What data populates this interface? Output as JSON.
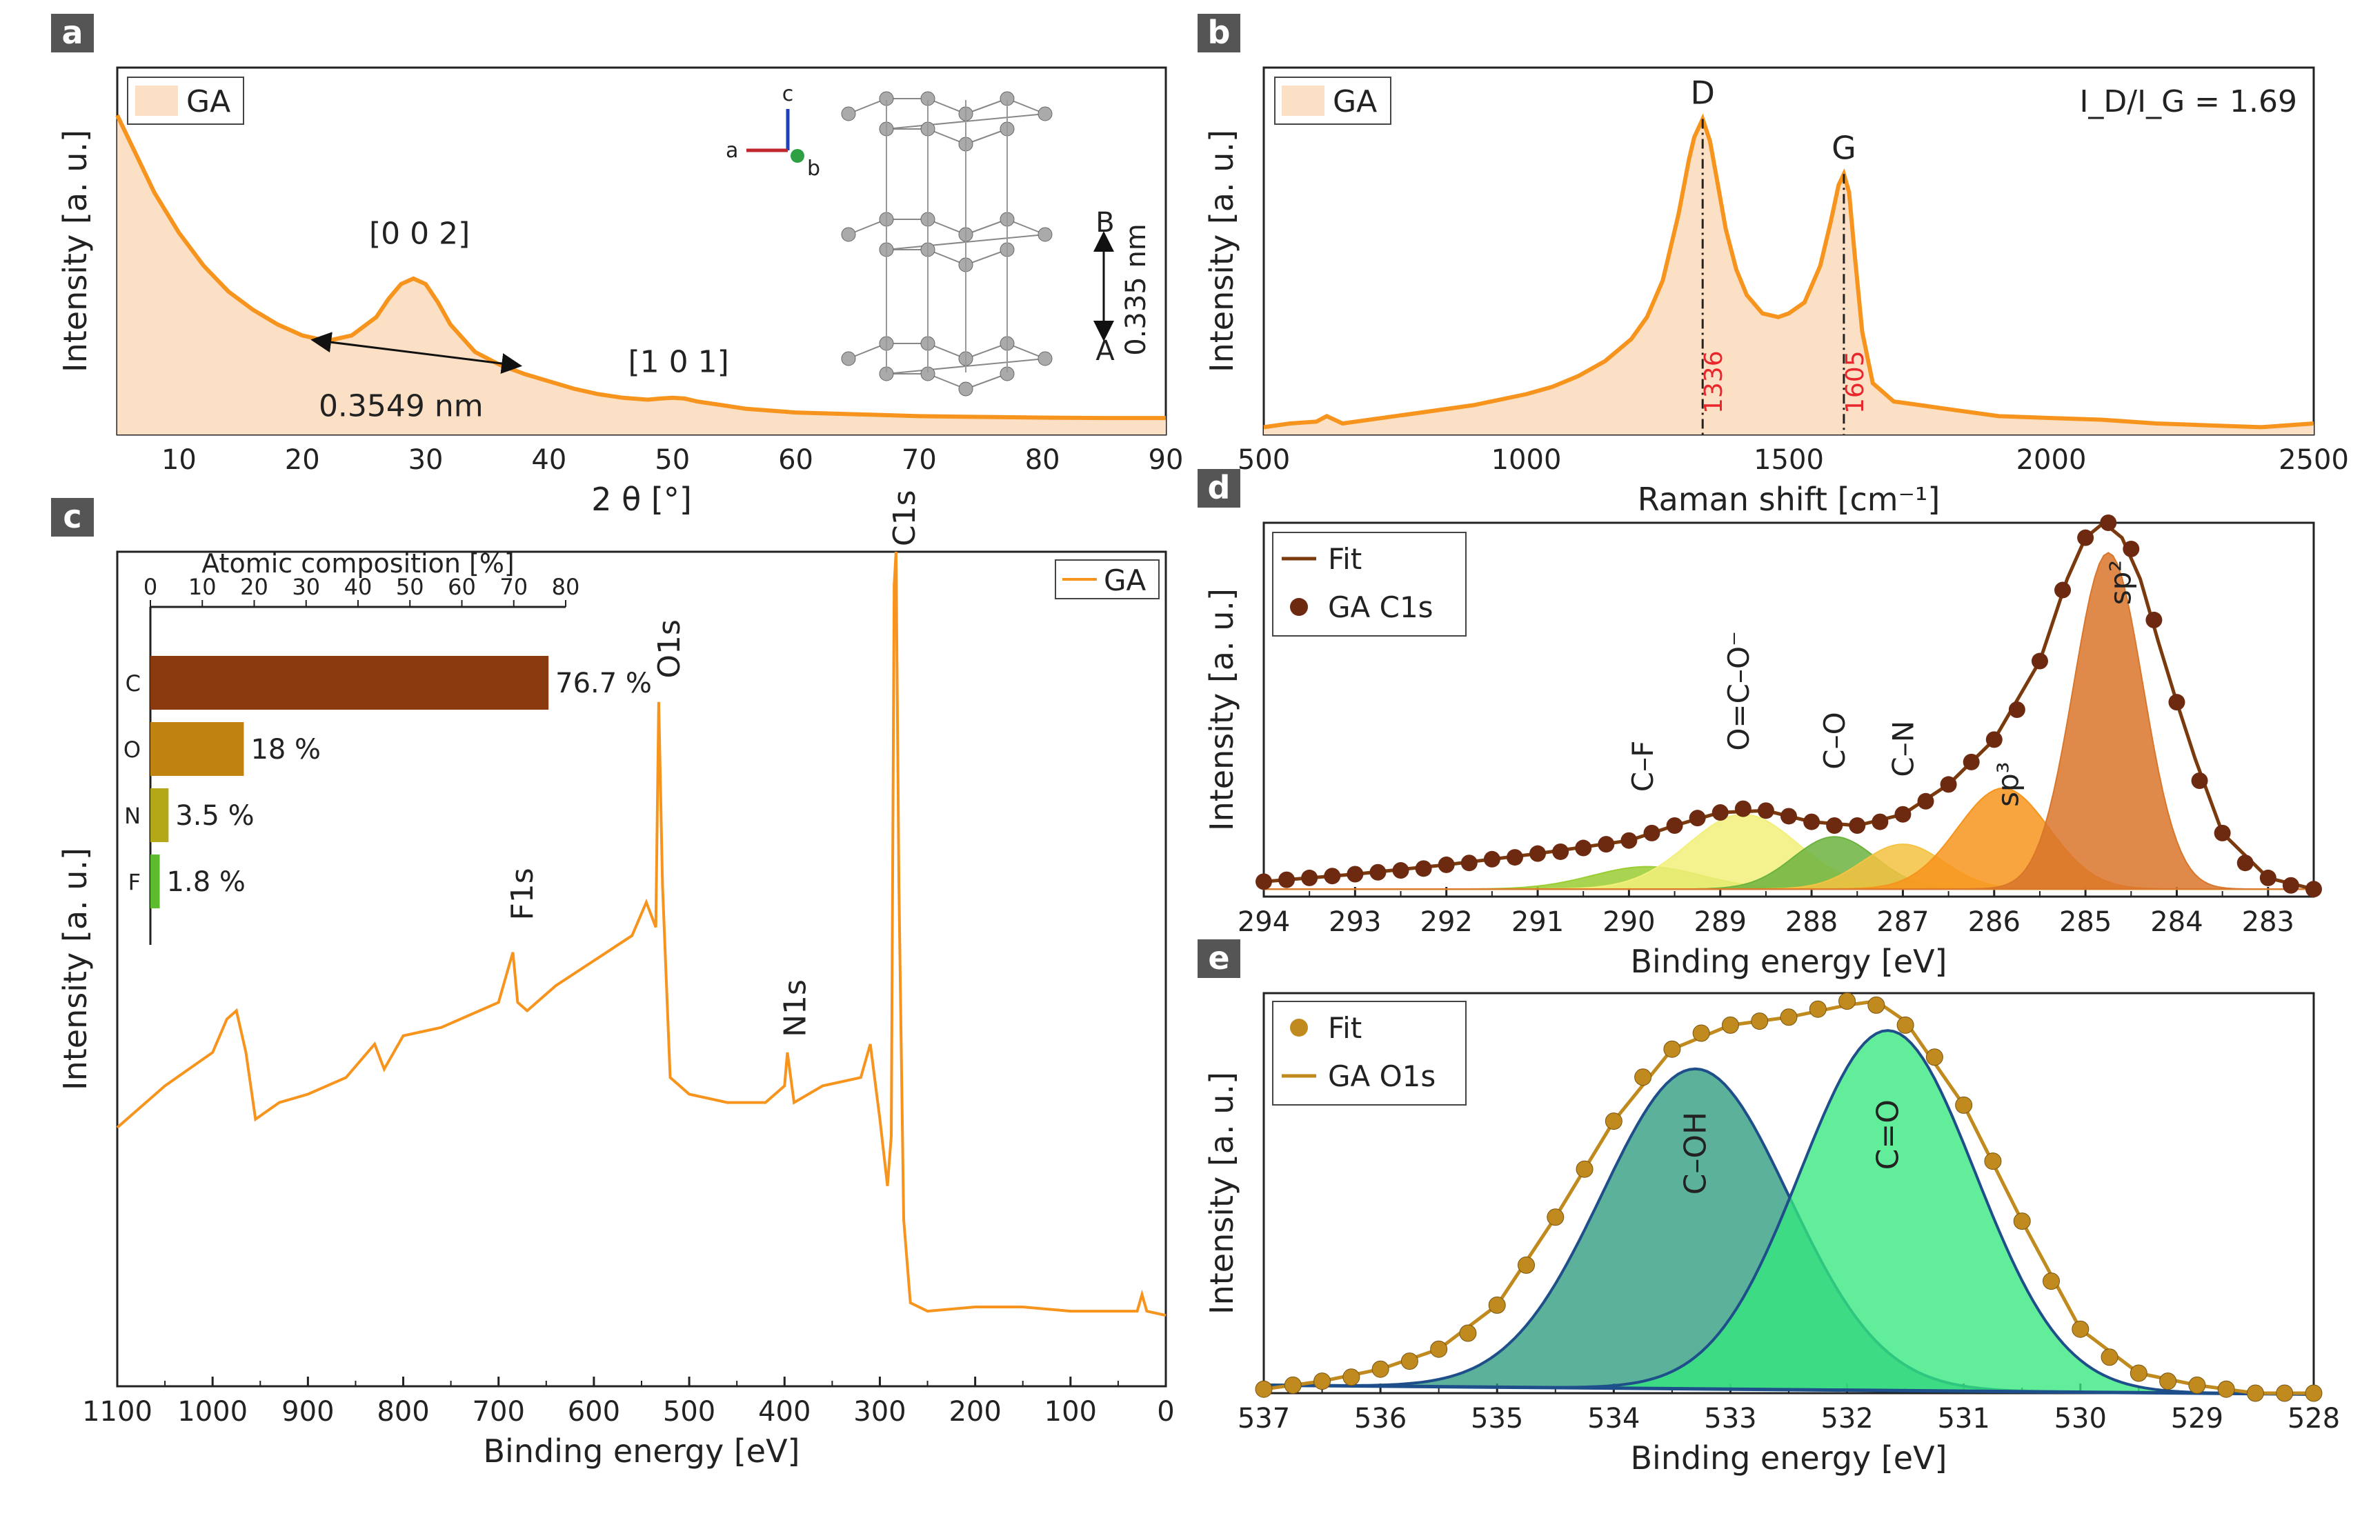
{
  "colors": {
    "orange": "#f7941d",
    "orange_fill": "#fbe0c6",
    "brown": "#7a3a0d",
    "dot_brown": "#6e2a10",
    "gold": "#c08a1e",
    "red_label": "#e8262b",
    "teal": "#2e9b7f",
    "green": "#35e87d",
    "navy": "#1f4f8a",
    "bar_C": "#8b3a0f",
    "bar_O": "#c0830f",
    "bar_N": "#b5a818",
    "bar_F": "#5dbb2e",
    "panel_label_bg": "#555555",
    "xps_sp2": "#d9762b",
    "xps_sp3": "#f7941d",
    "xps_co": "#6db33f",
    "xps_cn": "#f5c242",
    "xps_ocoo": "#f2f07a",
    "xps_cf": "#9acd32"
  },
  "chart_data": [
    {
      "panel": "a",
      "type": "line",
      "title": "",
      "xlabel": "2 θ [°]",
      "ylabel": "Intensity [a. u.]",
      "xlim": [
        5,
        90
      ],
      "ylim": [
        0,
        1
      ],
      "xticks": [
        10,
        20,
        30,
        40,
        50,
        60,
        70,
        80,
        90
      ],
      "legend": "GA",
      "series": [
        {
          "name": "GA",
          "x": [
            5,
            6,
            8,
            10,
            12,
            14,
            16,
            18,
            20,
            22,
            24,
            26,
            27,
            28,
            29,
            30,
            31,
            32,
            34,
            36,
            38,
            40,
            42,
            44,
            46,
            48,
            49,
            50,
            51,
            52,
            54,
            56,
            60,
            65,
            70,
            75,
            80,
            85,
            90
          ],
          "y": [
            0.87,
            0.8,
            0.66,
            0.55,
            0.46,
            0.39,
            0.34,
            0.3,
            0.27,
            0.255,
            0.27,
            0.32,
            0.37,
            0.41,
            0.425,
            0.41,
            0.36,
            0.3,
            0.225,
            0.19,
            0.165,
            0.145,
            0.125,
            0.11,
            0.1,
            0.095,
            0.098,
            0.1,
            0.098,
            0.09,
            0.08,
            0.07,
            0.06,
            0.055,
            0.05,
            0.048,
            0.046,
            0.045,
            0.045
          ]
        }
      ],
      "annotations": {
        "peak_002": "[0 0 2]",
        "peak_101": "[1 0 1]",
        "fwhm": "0.3549 nm",
        "interlayer": "0.335 nm",
        "layer_A": "A",
        "layer_B": "B",
        "axis_a": "a",
        "axis_b": "b",
        "axis_c": "c"
      }
    },
    {
      "panel": "b",
      "type": "line",
      "xlabel": "Raman shift [cm⁻¹]",
      "ylabel": "Intensity [a. u.]",
      "xlim": [
        500,
        2500
      ],
      "ylim": [
        0,
        1
      ],
      "xticks": [
        500,
        1000,
        1500,
        2000,
        2500
      ],
      "legend": "GA",
      "ratio_text": "I_D/I_G = 1.69",
      "series": [
        {
          "name": "GA",
          "x": [
            500,
            550,
            600,
            620,
            650,
            700,
            800,
            900,
            1000,
            1050,
            1100,
            1150,
            1200,
            1230,
            1260,
            1290,
            1310,
            1320,
            1336,
            1350,
            1365,
            1380,
            1400,
            1420,
            1450,
            1480,
            1500,
            1530,
            1560,
            1580,
            1595,
            1605,
            1615,
            1625,
            1640,
            1660,
            1700,
            1750,
            1800,
            1900,
            2000,
            2100,
            2200,
            2300,
            2400,
            2500
          ],
          "y": [
            0.02,
            0.03,
            0.035,
            0.05,
            0.03,
            0.04,
            0.06,
            0.08,
            0.11,
            0.13,
            0.16,
            0.2,
            0.26,
            0.32,
            0.42,
            0.6,
            0.75,
            0.81,
            0.86,
            0.8,
            0.68,
            0.56,
            0.45,
            0.38,
            0.33,
            0.32,
            0.33,
            0.36,
            0.46,
            0.58,
            0.68,
            0.71,
            0.66,
            0.5,
            0.28,
            0.14,
            0.09,
            0.08,
            0.07,
            0.05,
            0.045,
            0.04,
            0.03,
            0.025,
            0.02,
            0.03
          ]
        }
      ],
      "peaks": [
        {
          "name": "D",
          "position": 1336
        },
        {
          "name": "G",
          "position": 1605
        }
      ]
    },
    {
      "panel": "c",
      "type": "line",
      "xlabel": "Binding energy [eV]",
      "ylabel": "Intensity [a. u.]",
      "xlim": [
        1100,
        0
      ],
      "ylim": [
        0,
        1
      ],
      "xticks": [
        1100,
        1000,
        900,
        800,
        700,
        600,
        500,
        400,
        300,
        200,
        100,
        0
      ],
      "legend": "GA",
      "series": [
        {
          "name": "GA",
          "x": [
            1100,
            1050,
            1000,
            985,
            975,
            965,
            955,
            930,
            900,
            860,
            830,
            820,
            800,
            760,
            720,
            700,
            690,
            685,
            680,
            670,
            640,
            600,
            560,
            545,
            535,
            532,
            528,
            520,
            500,
            460,
            420,
            400,
            397,
            390,
            360,
            320,
            310,
            300,
            292,
            288,
            285,
            283,
            280,
            275,
            268,
            250,
            200,
            150,
            100,
            50,
            30,
            25,
            20,
            0
          ],
          "y": [
            0.31,
            0.36,
            0.4,
            0.44,
            0.45,
            0.4,
            0.32,
            0.34,
            0.35,
            0.37,
            0.41,
            0.38,
            0.42,
            0.43,
            0.45,
            0.46,
            0.5,
            0.52,
            0.46,
            0.45,
            0.48,
            0.51,
            0.54,
            0.58,
            0.55,
            0.82,
            0.6,
            0.37,
            0.35,
            0.34,
            0.34,
            0.36,
            0.4,
            0.34,
            0.36,
            0.37,
            0.41,
            0.32,
            0.24,
            0.3,
            0.96,
            1.0,
            0.6,
            0.2,
            0.1,
            0.09,
            0.095,
            0.095,
            0.09,
            0.09,
            0.09,
            0.11,
            0.09,
            0.085
          ]
        }
      ],
      "peak_labels": [
        {
          "name": "C1s",
          "position": 285
        },
        {
          "name": "O1s",
          "position": 532
        },
        {
          "name": "N1s",
          "position": 400
        },
        {
          "name": "F1s",
          "position": 686
        }
      ],
      "inset": {
        "type": "bar",
        "title": "Atomic composition [%]",
        "xlim": [
          0,
          80
        ],
        "xticks": [
          0,
          10,
          20,
          30,
          40,
          50,
          60,
          70,
          80
        ],
        "categories": [
          "C",
          "O",
          "N",
          "F"
        ],
        "values": [
          76.7,
          18,
          3.5,
          1.8
        ],
        "value_labels": [
          "76.7 %",
          "18 %",
          "3.5 %",
          "1.8 %"
        ]
      }
    },
    {
      "panel": "d",
      "type": "scatter",
      "xlabel": "Binding energy [eV]",
      "ylabel": "Intensity [a. u.]",
      "xlim": [
        294,
        282.5
      ],
      "ylim": [
        0,
        1
      ],
      "xticks": [
        294,
        293,
        292,
        291,
        290,
        289,
        288,
        287,
        286,
        285,
        284,
        283
      ],
      "legend": [
        "Fit",
        "GA C1s"
      ],
      "series": [
        {
          "name": "GA C1s",
          "x": [
            294,
            293.75,
            293.5,
            293.25,
            293,
            292.75,
            292.5,
            292.25,
            292,
            291.75,
            291.5,
            291.25,
            291,
            290.75,
            290.5,
            290.25,
            290,
            289.75,
            289.5,
            289.25,
            289,
            288.75,
            288.5,
            288.25,
            288,
            287.75,
            287.5,
            287.25,
            287,
            286.75,
            286.5,
            286.25,
            286,
            285.75,
            285.5,
            285.25,
            285,
            284.75,
            284.5,
            284.25,
            284,
            283.75,
            283.5,
            283.25,
            283,
            282.75,
            282.5
          ],
          "y": [
            0.04,
            0.045,
            0.05,
            0.055,
            0.06,
            0.065,
            0.07,
            0.075,
            0.085,
            0.09,
            0.1,
            0.105,
            0.115,
            0.12,
            0.13,
            0.14,
            0.15,
            0.17,
            0.19,
            0.21,
            0.225,
            0.235,
            0.23,
            0.215,
            0.2,
            0.19,
            0.19,
            0.2,
            0.22,
            0.255,
            0.3,
            0.36,
            0.42,
            0.5,
            0.63,
            0.82,
            0.96,
            1.0,
            0.93,
            0.74,
            0.52,
            0.31,
            0.17,
            0.09,
            0.05,
            0.03,
            0.02
          ]
        },
        {
          "name": "Fit",
          "x": [
            294,
            293,
            292,
            291,
            290,
            289.5,
            289,
            288.5,
            288,
            287.5,
            287,
            286.5,
            286,
            285.5,
            285.2,
            285,
            284.8,
            284.6,
            284.4,
            284.2,
            284,
            283.8,
            283.5,
            283,
            282.5
          ],
          "y": [
            0.04,
            0.06,
            0.085,
            0.115,
            0.15,
            0.19,
            0.225,
            0.23,
            0.2,
            0.19,
            0.22,
            0.3,
            0.42,
            0.63,
            0.85,
            0.96,
            1.0,
            0.96,
            0.85,
            0.68,
            0.52,
            0.37,
            0.17,
            0.05,
            0.02
          ]
        }
      ],
      "components": [
        {
          "name": "sp²",
          "center": 284.75,
          "height": 0.9
        },
        {
          "name": "sp³",
          "center": 285.9,
          "height": 0.27
        },
        {
          "name": "C–N",
          "center": 287.0,
          "height": 0.12
        },
        {
          "name": "C–O",
          "center": 287.75,
          "height": 0.14
        },
        {
          "name": "O=C–O⁻",
          "center": 288.75,
          "height": 0.2
        },
        {
          "name": "C–F",
          "center": 289.8,
          "height": 0.06
        }
      ]
    },
    {
      "panel": "e",
      "type": "scatter",
      "xlabel": "Binding energy [eV]",
      "ylabel": "Intensity [a. u.]",
      "xlim": [
        537,
        528
      ],
      "ylim": [
        0,
        1
      ],
      "xticks": [
        537,
        536,
        535,
        534,
        533,
        532,
        531,
        530,
        529,
        528
      ],
      "legend": [
        "Fit",
        "GA O1s"
      ],
      "series": [
        {
          "name": "GA O1s",
          "x": [
            537,
            536.75,
            536.5,
            536.25,
            536,
            535.75,
            535.5,
            535.25,
            535,
            534.75,
            534.5,
            534.25,
            534,
            533.75,
            533.5,
            533.25,
            533,
            532.75,
            532.5,
            532.25,
            532,
            531.75,
            531.5,
            531.25,
            531,
            530.75,
            530.5,
            530.25,
            530,
            529.75,
            529.5,
            529.25,
            529,
            528.75,
            528.5,
            528.25,
            528
          ],
          "y": [
            0.01,
            0.02,
            0.03,
            0.04,
            0.06,
            0.08,
            0.11,
            0.15,
            0.22,
            0.32,
            0.44,
            0.56,
            0.68,
            0.79,
            0.86,
            0.9,
            0.92,
            0.93,
            0.94,
            0.96,
            0.98,
            0.97,
            0.92,
            0.84,
            0.72,
            0.58,
            0.43,
            0.28,
            0.16,
            0.09,
            0.05,
            0.03,
            0.02,
            0.01,
            0.0,
            0.0,
            0.0
          ]
        },
        {
          "name": "Fit",
          "x": [
            537,
            536.5,
            536,
            535.5,
            535,
            534.5,
            534,
            533.5,
            533,
            532.5,
            532,
            531.75,
            531.5,
            531,
            530.5,
            530,
            529.5,
            529,
            528.5,
            528
          ],
          "y": [
            0.01,
            0.03,
            0.06,
            0.11,
            0.22,
            0.44,
            0.68,
            0.86,
            0.92,
            0.94,
            0.97,
            0.98,
            0.93,
            0.72,
            0.43,
            0.16,
            0.05,
            0.02,
            0.0,
            0.0
          ]
        }
      ],
      "components": [
        {
          "name": "C–OH",
          "center": 533.3,
          "height": 0.8
        },
        {
          "name": "C=O",
          "center": 531.65,
          "height": 0.9
        }
      ]
    }
  ],
  "panel_labels": [
    "a",
    "b",
    "c",
    "d",
    "e"
  ]
}
